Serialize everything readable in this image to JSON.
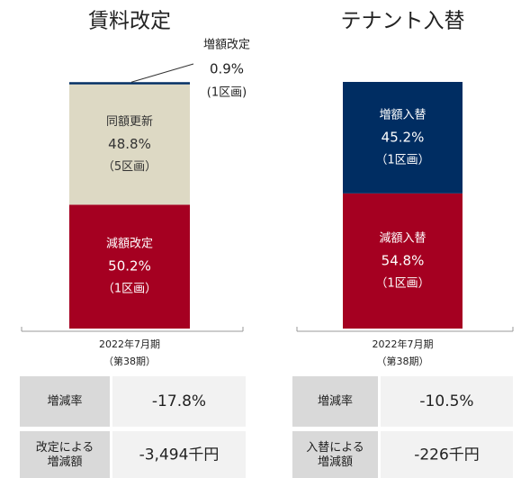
{
  "chart_data": [
    {
      "type": "stacked_bar",
      "title": "賃料改定",
      "categories": [
        [
          "2022年7月期",
          "（第38期）"
        ]
      ],
      "ylim": [
        0,
        100
      ],
      "series": [
        {
          "name": "減額改定",
          "color": "#a50021",
          "values": [
            50.2
          ],
          "value_labels": [
            "50.2%"
          ],
          "notes": [
            "（1区画）"
          ]
        },
        {
          "name": "同額更新",
          "color": "#ddd9c4",
          "values": [
            48.8
          ],
          "value_labels": [
            "48.8%"
          ],
          "notes": [
            "（5区画）"
          ]
        },
        {
          "name": "増額改定",
          "color": "#002d62",
          "values": [
            0.9
          ],
          "value_labels": [
            "0.9%"
          ],
          "notes": [
            "(1区画)"
          ]
        }
      ]
    },
    {
      "type": "stacked_bar",
      "title": "テナント入替",
      "categories": [
        [
          "2022年7月期",
          "（第38期）"
        ]
      ],
      "ylim": [
        0,
        100
      ],
      "series": [
        {
          "name": "減額入替",
          "color": "#a50021",
          "values": [
            54.8
          ],
          "value_labels": [
            "54.8%"
          ],
          "notes": [
            "（1区画）"
          ]
        },
        {
          "name": "増額入替",
          "color": "#002d62",
          "values": [
            45.2
          ],
          "value_labels": [
            "45.2%"
          ],
          "notes": [
            "（1区画）"
          ]
        }
      ]
    }
  ],
  "tables": [
    {
      "rows": [
        [
          "増減率",
          "-17.8%"
        ],
        [
          [
            "改定による",
            "増減額"
          ],
          "-3,494千円"
        ]
      ]
    },
    {
      "rows": [
        [
          "増減率",
          "-10.5%"
        ],
        [
          [
            "入替による",
            "増減額"
          ],
          "-226千円"
        ]
      ]
    }
  ]
}
